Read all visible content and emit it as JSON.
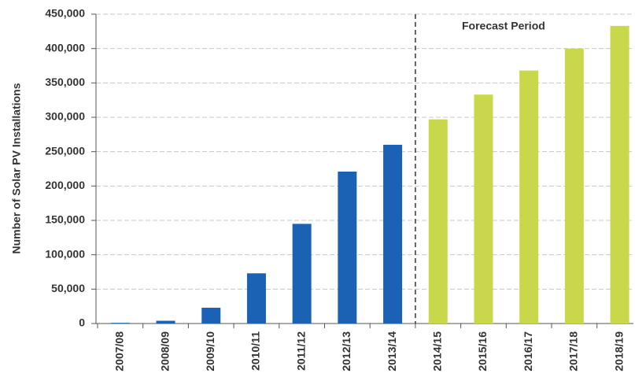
{
  "chart_data": {
    "type": "bar",
    "y_label": "Number of Solar PV Installations",
    "annotation": "Forecast Period",
    "categories": [
      "2007/08",
      "2008/09",
      "2009/10",
      "2010/11",
      "2011/12",
      "2012/13",
      "2013/14",
      "2014/15",
      "2015/16",
      "2016/17",
      "2017/18",
      "2018/19"
    ],
    "values": [
      1000,
      4000,
      23000,
      73000,
      145000,
      221000,
      260000,
      297000,
      333000,
      368000,
      400000,
      433000
    ],
    "colors": [
      "#1b62b5",
      "#1b62b5",
      "#1b62b5",
      "#1b62b5",
      "#1b62b5",
      "#1b62b5",
      "#1b62b5",
      "#c8d84a",
      "#c8d84a",
      "#c8d84a",
      "#c8d84a",
      "#c8d84a"
    ],
    "ylim": [
      0,
      450000
    ],
    "yticks": [
      0,
      {
        "value": 50000,
        "label": "50,000"
      },
      {
        "value": 100000,
        "label": "100,000"
      },
      {
        "value": 150000,
        "label": "150,000"
      },
      {
        "value": 200000,
        "label": "200,000"
      },
      {
        "value": 250000,
        "label": "250,000"
      },
      {
        "value": 300000,
        "label": "300,000"
      },
      {
        "value": 350000,
        "label": "350,000"
      },
      {
        "value": 400000,
        "label": "400,000"
      },
      {
        "value": 450000,
        "label": "450,000"
      }
    ],
    "grid": true
  }
}
